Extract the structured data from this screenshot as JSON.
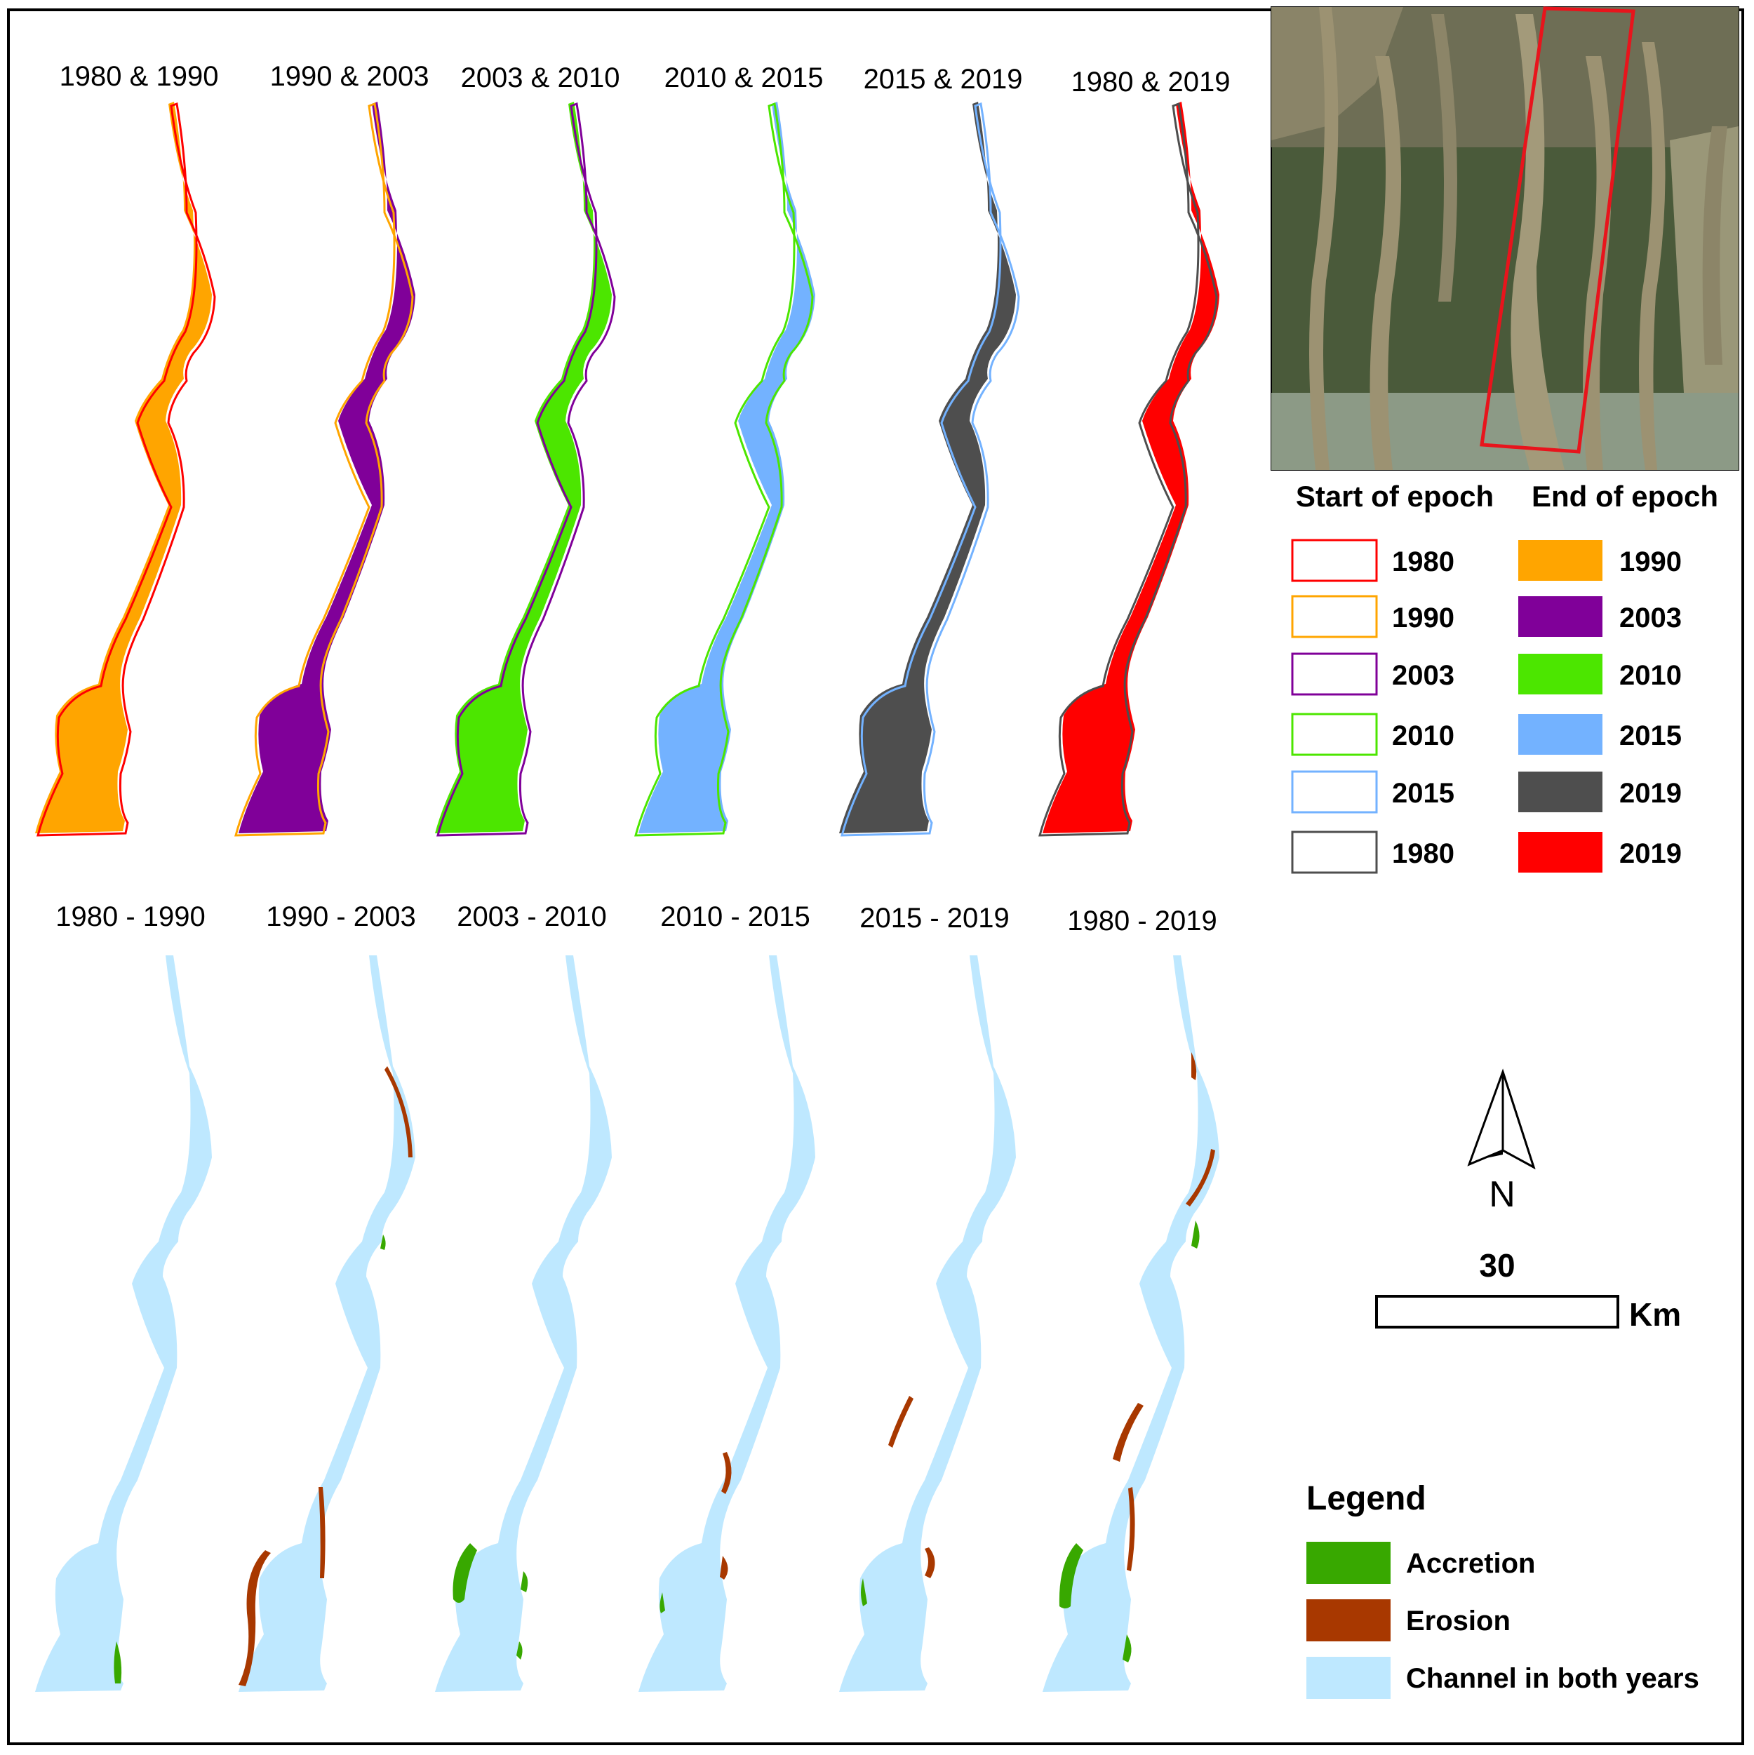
{
  "colors": {
    "c1980": "#ff0000",
    "c1990": "#ffa500",
    "c2003": "#800099",
    "c2010": "#4ce600",
    "c2015": "#73b2ff",
    "c2019_dark": "#4e4e4e",
    "c2019_red": "#ff0000",
    "c1980_black": "#4e4e4e",
    "accretion": "#38a800",
    "erosion": "#a83800",
    "channel": "#bee8ff",
    "inset_frame": "#e8141c"
  },
  "top_panels": [
    {
      "title": "1980 & 1990",
      "start_year": "1980",
      "end_year": "1990"
    },
    {
      "title": "1990 & 2003",
      "start_year": "1990",
      "end_year": "2003"
    },
    {
      "title": "2003 & 2010",
      "start_year": "2003",
      "end_year": "2010"
    },
    {
      "title": "2010 & 2015",
      "start_year": "2010",
      "end_year": "2015"
    },
    {
      "title": "2015 & 2019",
      "start_year": "2015",
      "end_year": "2019"
    },
    {
      "title": "1980 & 2019",
      "start_year": "1980",
      "end_year": "2019"
    }
  ],
  "bottom_panels": [
    {
      "title": "1980 - 1990"
    },
    {
      "title": "1990 - 2003"
    },
    {
      "title": "2003 - 2010"
    },
    {
      "title": "2010 - 2015"
    },
    {
      "title": "2015 - 2019"
    },
    {
      "title": "1980 - 2019"
    }
  ],
  "epoch_legend": {
    "start_heading": "Start of epoch",
    "end_heading": "End of epoch",
    "rows": [
      {
        "start_year": "1980",
        "start_color": "#ff0000",
        "end_year": "1990",
        "end_color": "#ffa500"
      },
      {
        "start_year": "1990",
        "start_color": "#ffa500",
        "end_year": "2003",
        "end_color": "#800099"
      },
      {
        "start_year": "2003",
        "start_color": "#800099",
        "end_year": "2010",
        "end_color": "#4ce600"
      },
      {
        "start_year": "2010",
        "start_color": "#4ce600",
        "end_year": "2015",
        "end_color": "#73b2ff"
      },
      {
        "start_year": "2015",
        "start_color": "#73b2ff",
        "end_year": "2019",
        "end_color": "#4e4e4e"
      },
      {
        "start_year": "1980",
        "start_color": "#4e4e4e",
        "end_year": "2019",
        "end_color": "#ff0000"
      }
    ]
  },
  "north_arrow": {
    "label": "N"
  },
  "scale_bar": {
    "value": "30",
    "unit": "Km"
  },
  "change_legend": {
    "title": "Legend",
    "items": [
      {
        "label": "Accretion",
        "color": "#38a800"
      },
      {
        "label": "Erosion",
        "color": "#a83800"
      },
      {
        "label": "Channel in both years",
        "color": "#bee8ff"
      }
    ]
  }
}
